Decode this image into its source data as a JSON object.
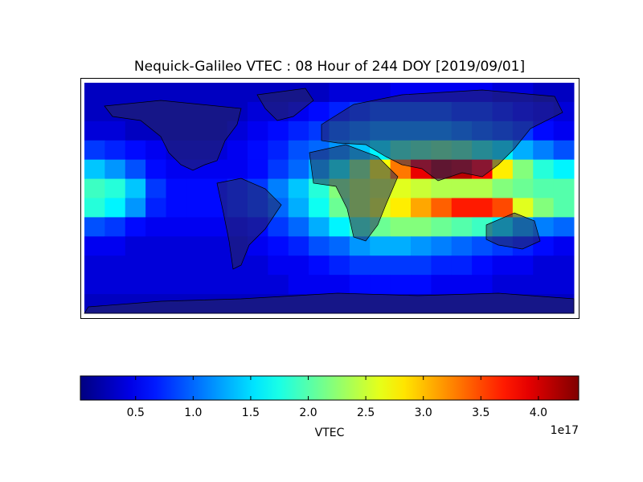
{
  "chart_data": {
    "type": "heatmap",
    "title": "Nequick-Galileo VTEC : 08 Hour of 244 DOY [2019/09/01]",
    "colormap": "jet",
    "values": [
      [
        0.3,
        0.3,
        0.3,
        0.3,
        0.3,
        0.3,
        0.3,
        0.3,
        0.3,
        0.3,
        0.3,
        0.3,
        0.4,
        0.4,
        0.4,
        0.5,
        0.5,
        0.5,
        0.5,
        0.5,
        0.4,
        0.4,
        0.3,
        0.3
      ],
      [
        0.3,
        0.3,
        0.3,
        0.3,
        0.3,
        0.3,
        0.3,
        0.3,
        0.4,
        0.4,
        0.5,
        0.6,
        0.7,
        0.8,
        0.9,
        0.9,
        0.9,
        0.9,
        0.8,
        0.8,
        0.7,
        0.6,
        0.5,
        0.4
      ],
      [
        0.4,
        0.4,
        0.3,
        0.3,
        0.3,
        0.3,
        0.3,
        0.4,
        0.5,
        0.6,
        0.7,
        0.8,
        1.0,
        1.1,
        1.2,
        1.2,
        1.2,
        1.2,
        1.1,
        1.0,
        0.9,
        0.8,
        0.6,
        0.5
      ],
      [
        0.8,
        0.7,
        0.6,
        0.5,
        0.4,
        0.4,
        0.4,
        0.5,
        0.6,
        0.7,
        0.9,
        1.0,
        1.2,
        1.4,
        1.6,
        1.9,
        2.0,
        2.1,
        2.0,
        1.8,
        1.6,
        1.3,
        1.1,
        0.9
      ],
      [
        1.4,
        1.2,
        0.9,
        0.6,
        0.5,
        0.5,
        0.5,
        0.5,
        0.6,
        0.8,
        1.0,
        1.3,
        1.7,
        2.2,
        2.7,
        3.3,
        3.9,
        4.2,
        4.1,
        3.8,
        2.8,
        2.2,
        1.8,
        1.6
      ],
      [
        1.9,
        1.8,
        1.4,
        0.8,
        0.6,
        0.6,
        0.6,
        0.7,
        0.8,
        1.1,
        1.4,
        1.8,
        2.2,
        2.4,
        2.5,
        2.6,
        2.5,
        2.4,
        2.4,
        2.4,
        2.2,
        2.1,
        2.0,
        2.0
      ],
      [
        1.8,
        1.6,
        1.2,
        0.7,
        0.6,
        0.6,
        0.6,
        0.7,
        0.8,
        1.0,
        1.3,
        1.7,
        2.1,
        2.4,
        2.6,
        2.8,
        3.1,
        3.4,
        3.7,
        3.7,
        3.5,
        2.6,
        2.2,
        2.0
      ],
      [
        0.9,
        0.8,
        0.6,
        0.5,
        0.5,
        0.5,
        0.5,
        0.5,
        0.6,
        0.8,
        1.0,
        1.3,
        1.6,
        1.9,
        2.1,
        2.2,
        2.2,
        2.1,
        2.0,
        1.9,
        1.6,
        1.3,
        1.1,
        1.0
      ],
      [
        0.5,
        0.5,
        0.4,
        0.4,
        0.4,
        0.4,
        0.4,
        0.4,
        0.5,
        0.6,
        0.7,
        0.9,
        1.0,
        1.2,
        1.3,
        1.3,
        1.2,
        1.1,
        1.0,
        0.9,
        0.8,
        0.7,
        0.6,
        0.5
      ],
      [
        0.4,
        0.4,
        0.4,
        0.4,
        0.4,
        0.4,
        0.4,
        0.4,
        0.4,
        0.5,
        0.5,
        0.6,
        0.7,
        0.8,
        0.8,
        0.8,
        0.8,
        0.7,
        0.7,
        0.6,
        0.5,
        0.5,
        0.4,
        0.4
      ],
      [
        0.4,
        0.4,
        0.4,
        0.4,
        0.4,
        0.4,
        0.4,
        0.4,
        0.4,
        0.4,
        0.5,
        0.5,
        0.5,
        0.6,
        0.6,
        0.6,
        0.6,
        0.5,
        0.5,
        0.5,
        0.4,
        0.4,
        0.4,
        0.4
      ],
      [
        0.3,
        0.3,
        0.3,
        0.3,
        0.3,
        0.3,
        0.3,
        0.3,
        0.3,
        0.3,
        0.3,
        0.3,
        0.3,
        0.3,
        0.3,
        0.3,
        0.3,
        0.3,
        0.3,
        0.3,
        0.3,
        0.3,
        0.3,
        0.3
      ]
    ],
    "clim": [
      0.02,
      4.35
    ],
    "cticks": [
      0.5,
      {
        "value": 1,
        "label": "1.0"
      },
      1.5,
      {
        "value": 2,
        "label": "2.0"
      },
      2.5,
      {
        "value": 3,
        "label": "3.0"
      },
      3.5,
      {
        "value": 4,
        "label": "4.0"
      }
    ],
    "colorbar_label": "VTEC",
    "colorbar_offset": "1e17"
  }
}
